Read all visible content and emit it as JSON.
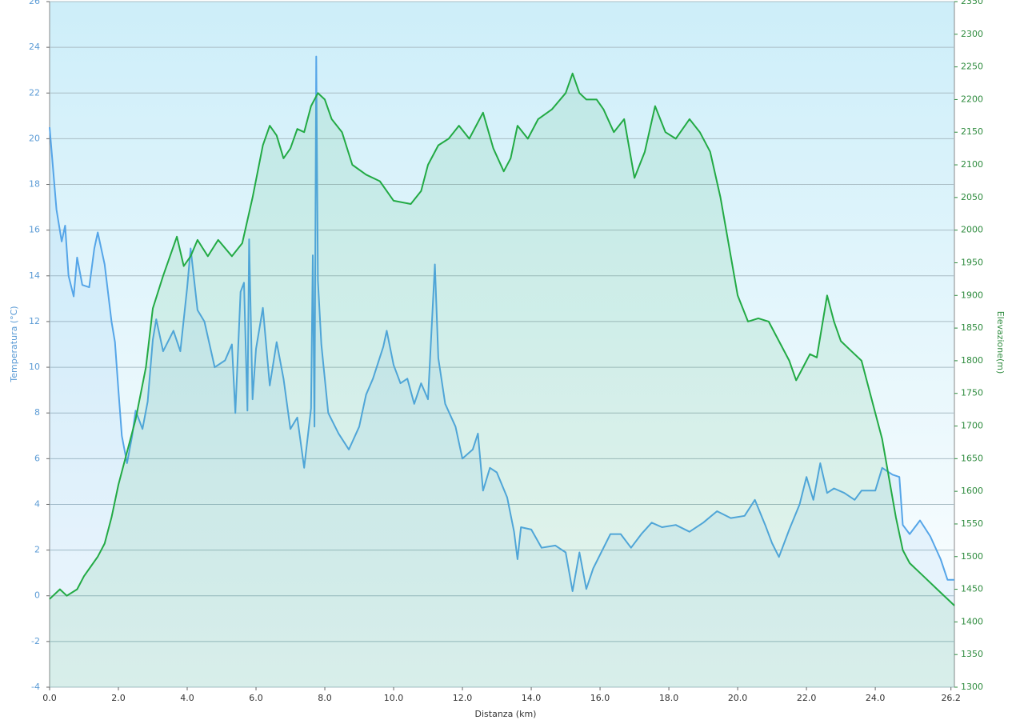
{
  "chart_data": {
    "type": "line",
    "xlabel": "Distanza  (km)",
    "ylabel": "Temperatura (°C)",
    "y2label": "Elevazione(m)",
    "xlim": [
      0,
      26.3
    ],
    "xticks": [
      {
        "value": 0,
        "label": "0.0"
      },
      {
        "value": 2,
        "label": "2.0"
      },
      {
        "value": 4,
        "label": "4.0"
      },
      {
        "value": 6,
        "label": "6.0"
      },
      {
        "value": 8,
        "label": "8.0"
      },
      {
        "value": 10,
        "label": "10.0"
      },
      {
        "value": 12,
        "label": "12.0"
      },
      {
        "value": 14,
        "label": "14.0"
      },
      {
        "value": 16,
        "label": "16.0"
      },
      {
        "value": 18,
        "label": "18.0"
      },
      {
        "value": 20,
        "label": "20.0"
      },
      {
        "value": 22,
        "label": "22.0"
      },
      {
        "value": 24,
        "label": "24.0"
      },
      {
        "value": 26.2,
        "label": "26.2"
      }
    ],
    "ylim": [
      -4,
      26
    ],
    "yticks": [
      -4,
      -2,
      0,
      2,
      4,
      6,
      8,
      10,
      12,
      14,
      16,
      18,
      20,
      22,
      24,
      26
    ],
    "y2lim": [
      1300,
      2350
    ],
    "y2ticks": [
      1300,
      1350,
      1400,
      1450,
      1500,
      1550,
      1600,
      1650,
      1700,
      1750,
      1800,
      1850,
      1900,
      1950,
      2000,
      2050,
      2100,
      2150,
      2200,
      2250,
      2300,
      2350
    ],
    "grid": true,
    "series": [
      {
        "color": "#55a5e8",
        "axis": "y",
        "x": [
          0,
          0.1,
          0.2,
          0.35,
          0.45,
          0.55,
          0.7,
          0.8,
          0.95,
          1.15,
          1.3,
          1.4,
          1.6,
          1.8,
          1.9,
          2.0,
          2.1,
          2.25,
          2.4,
          2.5,
          2.7,
          2.85,
          3.0,
          3.1,
          3.3,
          3.6,
          3.8,
          4.0,
          4.1,
          4.3,
          4.5,
          4.8,
          5.1,
          5.3,
          5.4,
          5.55,
          5.65,
          5.75,
          5.8,
          5.9,
          6.0,
          6.2,
          6.4,
          6.6,
          6.8,
          7.0,
          7.2,
          7.4,
          7.6,
          7.65,
          7.7,
          7.75,
          7.8,
          7.9,
          8.1,
          8.4,
          8.7,
          9.0,
          9.2,
          9.4,
          9.7,
          9.8,
          10.0,
          10.2,
          10.4,
          10.6,
          10.8,
          11.0,
          11.2,
          11.3,
          11.5,
          11.8,
          12.0,
          12.3,
          12.45,
          12.6,
          12.8,
          13.0,
          13.3,
          13.5,
          13.6,
          13.7,
          14.0,
          14.3,
          14.7,
          15.0,
          15.2,
          15.4,
          15.6,
          15.8,
          16.0,
          16.3,
          16.6,
          16.9,
          17.2,
          17.5,
          17.8,
          18.2,
          18.6,
          19.0,
          19.4,
          19.8,
          20.2,
          20.5,
          20.8,
          21.0,
          21.2,
          21.5,
          21.8,
          22.0,
          22.2,
          22.4,
          22.6,
          22.8,
          23.1,
          23.4,
          23.6,
          24.0,
          24.2,
          24.5,
          24.7,
          24.8,
          25.0,
          25.3,
          25.6,
          25.9,
          26.1,
          26.3
        ],
        "values": [
          20.5,
          18.7,
          16.9,
          15.5,
          16.2,
          14,
          13.1,
          14.8,
          13.6,
          13.5,
          15.2,
          15.9,
          14.5,
          12,
          11.1,
          9,
          7,
          5.8,
          7,
          8.1,
          7.3,
          8.5,
          11.2,
          12.1,
          10.7,
          11.6,
          10.7,
          13.5,
          15.2,
          12.5,
          12,
          10,
          10.3,
          11,
          8,
          13.3,
          13.7,
          8.1,
          15.6,
          8.6,
          10.8,
          12.6,
          9.2,
          11.1,
          9.5,
          7.3,
          7.8,
          5.6,
          8.2,
          14.9,
          7.4,
          23.6,
          13.8,
          11,
          8,
          7.1,
          6.4,
          7.4,
          8.8,
          9.5,
          10.9,
          11.6,
          10.1,
          9.3,
          9.5,
          8.4,
          9.3,
          8.6,
          14.5,
          10.4,
          8.4,
          7.4,
          6,
          6.4,
          7.1,
          4.6,
          5.6,
          5.4,
          4.3,
          2.8,
          1.6,
          3,
          2.9,
          2.1,
          2.2,
          1.9,
          0.2,
          1.9,
          0.3,
          1.2,
          1.8,
          2.7,
          2.7,
          2.1,
          2.7,
          3.2,
          3.0,
          3.1,
          2.8,
          3.2,
          3.7,
          3.4,
          3.5,
          4.2,
          3.1,
          2.3,
          1.7,
          2.9,
          4,
          5.2,
          4.2,
          5.8,
          4.5,
          4.7,
          4.5,
          4.2,
          4.6,
          4.6,
          5.6,
          5.3,
          5.2,
          3.1,
          2.7,
          3.3,
          2.6,
          1.6,
          0.7,
          0.7
        ]
      },
      {
        "color": "#22aa44",
        "axis": "y2",
        "x": [
          0,
          0.1,
          0.3,
          0.5,
          0.8,
          1.0,
          1.2,
          1.4,
          1.6,
          1.8,
          2.0,
          2.2,
          2.5,
          2.8,
          3.0,
          3.3,
          3.5,
          3.7,
          3.9,
          4.1,
          4.3,
          4.6,
          4.9,
          5.3,
          5.6,
          5.9,
          6.2,
          6.4,
          6.6,
          6.8,
          7.0,
          7.2,
          7.4,
          7.6,
          7.8,
          8.0,
          8.2,
          8.5,
          8.8,
          9.2,
          9.6,
          10.0,
          10.5,
          10.8,
          11.0,
          11.3,
          11.6,
          11.9,
          12.2,
          12.6,
          12.9,
          13.2,
          13.4,
          13.6,
          13.9,
          14.2,
          14.6,
          15.0,
          15.2,
          15.4,
          15.6,
          15.9,
          16.1,
          16.4,
          16.7,
          17.0,
          17.3,
          17.6,
          17.9,
          18.2,
          18.6,
          18.9,
          19.2,
          19.5,
          19.8,
          20.0,
          20.3,
          20.6,
          20.9,
          21.2,
          21.5,
          21.7,
          21.9,
          22.1,
          22.3,
          22.6,
          22.8,
          23.0,
          23.3,
          23.6,
          23.9,
          24.2,
          24.4,
          24.6,
          24.8,
          25.0,
          25.4,
          25.8,
          26.2,
          26.3
        ],
        "values": [
          1435,
          1440,
          1450,
          1440,
          1450,
          1470,
          1485,
          1500,
          1520,
          1560,
          1610,
          1650,
          1710,
          1790,
          1880,
          1930,
          1960,
          1990,
          1945,
          1960,
          1985,
          1960,
          1985,
          1960,
          1980,
          2050,
          2130,
          2160,
          2145,
          2110,
          2125,
          2155,
          2150,
          2190,
          2210,
          2200,
          2170,
          2150,
          2100,
          2085,
          2075,
          2045,
          2040,
          2060,
          2100,
          2130,
          2140,
          2160,
          2140,
          2180,
          2125,
          2090,
          2110,
          2160,
          2140,
          2170,
          2185,
          2210,
          2240,
          2210,
          2200,
          2200,
          2185,
          2150,
          2170,
          2080,
          2120,
          2190,
          2150,
          2140,
          2170,
          2150,
          2120,
          2050,
          1960,
          1900,
          1860,
          1865,
          1860,
          1830,
          1800,
          1770,
          1790,
          1810,
          1805,
          1900,
          1860,
          1830,
          1815,
          1800,
          1740,
          1680,
          1620,
          1560,
          1510,
          1490,
          1470,
          1450,
          1430,
          1425
        ]
      }
    ]
  }
}
